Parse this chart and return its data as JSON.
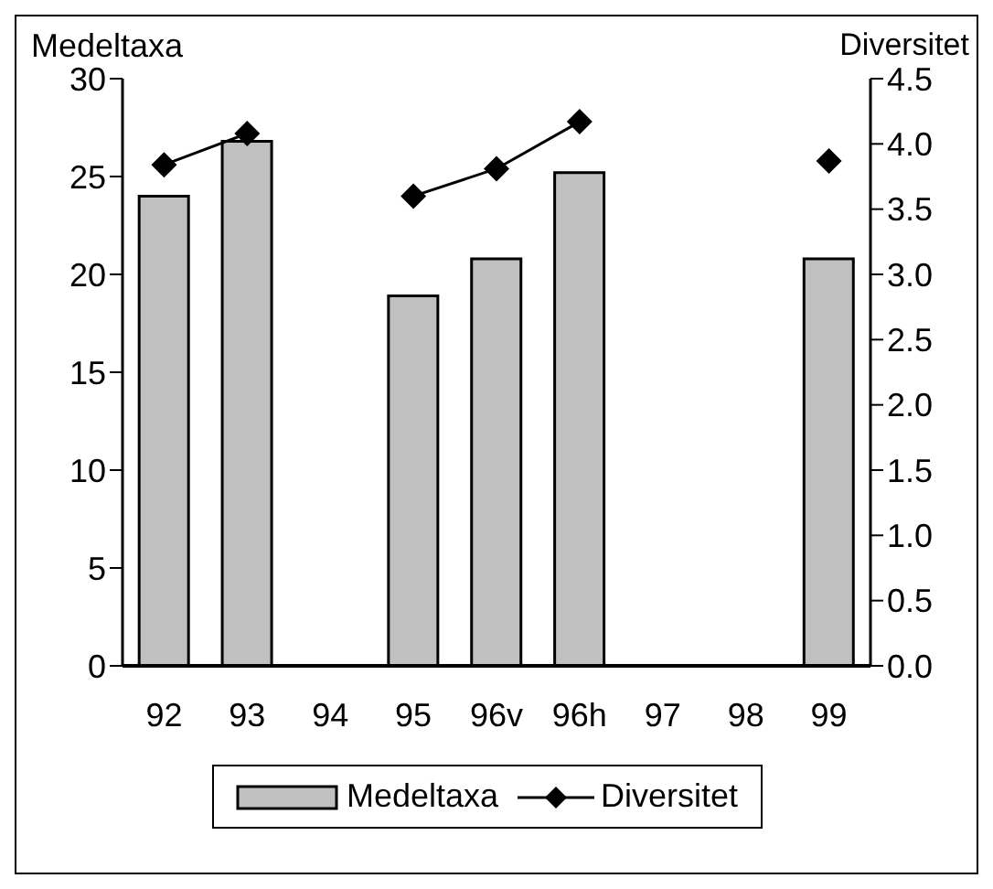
{
  "chart_data": {
    "type": "bar",
    "categories": [
      "92",
      "93",
      "94",
      "95",
      "96v",
      "96h",
      "97",
      "98",
      "99"
    ],
    "ylabel": "Medeltaxa",
    "y2label": "Diversitet",
    "series": [
      {
        "name": "Medeltaxa",
        "color": "#c0c0c0",
        "values": [
          24,
          26.8,
          null,
          18.9,
          20.8,
          25.2,
          null,
          null,
          20.8
        ]
      },
      {
        "name": "Diversitet",
        "type": "line",
        "axis": "y2",
        "color": "#000000",
        "marker": "diamond",
        "values": [
          3.84,
          4.08,
          null,
          3.6,
          3.81,
          4.17,
          null,
          null,
          3.87
        ]
      }
    ],
    "ylim": [
      0,
      30
    ],
    "yticks": [
      0,
      5,
      10,
      15,
      20,
      25,
      30
    ],
    "y2lim": [
      0,
      4.5
    ],
    "y2ticks": [
      {
        "value": 0,
        "label": "0.0"
      },
      {
        "value": 0.5,
        "label": "0.5"
      },
      {
        "value": 1,
        "label": "1.0"
      },
      {
        "value": 1.5,
        "label": "1.5"
      },
      {
        "value": 2,
        "label": "2.0"
      },
      {
        "value": 2.5,
        "label": "2.5"
      },
      {
        "value": 3,
        "label": "3.0"
      },
      {
        "value": 3.5,
        "label": "3.5"
      },
      {
        "value": 4,
        "label": "4.0"
      },
      {
        "value": 4.5,
        "label": "4.5"
      }
    ],
    "grid": false,
    "legend": "bottom"
  }
}
